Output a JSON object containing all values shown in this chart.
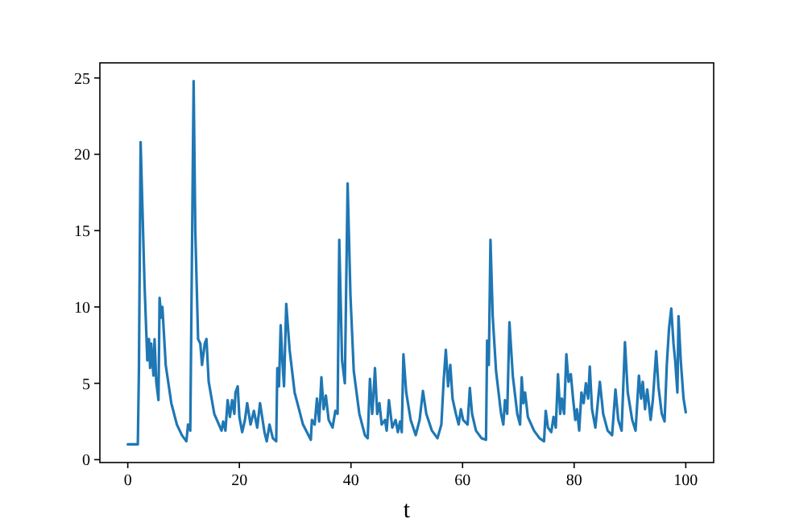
{
  "chart_data": {
    "type": "line",
    "xlabel": "t",
    "xlim": [
      -5,
      105
    ],
    "ylim": [
      -0.19,
      25.99
    ],
    "xticks": [
      0,
      20,
      40,
      60,
      80,
      100
    ],
    "yticks": [
      0,
      5,
      10,
      15,
      20,
      25
    ],
    "grid": false,
    "line_style": "solid",
    "series": [
      {
        "color": "#1f77b4",
        "x": [
          0,
          1.8,
          2.0,
          2.3,
          3.0,
          3.5,
          3.8,
          4.0,
          4.2,
          4.6,
          4.8,
          5.1,
          5.5,
          5.7,
          6.0,
          6.2,
          6.8,
          7.8,
          8.8,
          9.7,
          10.5,
          10.8,
          11.2,
          11.8,
          12.1,
          12.6,
          13.0,
          13.3,
          13.8,
          14.1,
          14.5,
          15.5,
          16.8,
          17.1,
          17.5,
          17.9,
          18.3,
          18.7,
          19.1,
          19.3,
          19.7,
          20.0,
          20.5,
          21.0,
          21.4,
          22.0,
          22.6,
          23.2,
          23.7,
          24.5,
          24.9,
          25.4,
          26.0,
          26.6,
          26.8,
          27.1,
          27.4,
          27.7,
          28.0,
          28.4,
          29.0,
          29.9,
          31.4,
          32.8,
          33.0,
          33.5,
          33.9,
          34.3,
          34.7,
          35.1,
          35.5,
          36.0,
          36.7,
          37.2,
          37.6,
          37.9,
          38.4,
          38.9,
          39.4,
          39.9,
          40.5,
          41.5,
          42.5,
          43.0,
          43.4,
          43.8,
          44.0,
          44.3,
          44.7,
          45.1,
          45.5,
          46.1,
          46.4,
          46.8,
          47.4,
          48.0,
          48.4,
          48.8,
          49.1,
          49.4,
          49.9,
          50.7,
          51.6,
          52.3,
          52.9,
          53.5,
          54.5,
          55.5,
          56.2,
          56.6,
          57.0,
          57.4,
          57.8,
          58.2,
          58.8,
          59.3,
          59.7,
          60.1,
          60.9,
          61.3,
          61.7,
          62.4,
          63.4,
          64.2,
          64.4,
          64.7,
          65.0,
          65.4,
          66.0,
          66.9,
          67.3,
          67.6,
          68.0,
          68.4,
          69.0,
          69.8,
          70.3,
          70.6,
          70.9,
          71.2,
          71.7,
          72.8,
          73.8,
          74.6,
          74.9,
          75.3,
          75.9,
          76.3,
          76.7,
          77.1,
          77.5,
          77.8,
          78.2,
          78.6,
          79.0,
          79.4,
          79.8,
          80.2,
          80.5,
          80.9,
          81.3,
          81.7,
          82.1,
          82.5,
          82.8,
          83.2,
          83.8,
          84.6,
          85.2,
          86.0,
          86.8,
          87.4,
          87.9,
          88.5,
          89.1,
          89.6,
          90.4,
          91.0,
          91.6,
          92.0,
          92.3,
          92.7,
          93.1,
          93.7,
          94.1,
          94.7,
          95.1,
          95.7,
          96.2,
          96.6,
          97.0,
          97.4,
          97.8,
          98.1,
          98.5,
          98.7,
          99.1,
          99.6,
          100
        ],
        "values": [
          1,
          1,
          6,
          20.8,
          11.5,
          6.5,
          7.9,
          6,
          7.6,
          5.5,
          7.9,
          5.1,
          3.9,
          10.6,
          9.3,
          10,
          6.2,
          3.7,
          2.3,
          1.6,
          1.2,
          2.3,
          1.9,
          24.8,
          15,
          7.9,
          7.6,
          6.2,
          7.6,
          7.9,
          5.1,
          3,
          1.9,
          2.5,
          1.9,
          3.9,
          2.8,
          3.9,
          3,
          4.4,
          4.8,
          2.8,
          1.8,
          2.6,
          3.7,
          2.3,
          3.2,
          2.1,
          3.7,
          1.8,
          1.2,
          2.3,
          1.4,
          1.2,
          6,
          4.8,
          8.8,
          6.5,
          4.8,
          10.2,
          7.2,
          4.4,
          2.3,
          1.3,
          2.6,
          2.3,
          4.0,
          2.5,
          5.4,
          3.3,
          4.2,
          2.6,
          2.1,
          3.2,
          3.0,
          14.4,
          6.5,
          5.0,
          18.1,
          10.8,
          5.8,
          3.0,
          1.6,
          1.4,
          5.3,
          3.0,
          4.0,
          6.0,
          3.0,
          3.7,
          2.3,
          2.6,
          1.9,
          3.9,
          2.1,
          2.6,
          1.8,
          2.5,
          1.8,
          6.9,
          4.4,
          2.6,
          1.6,
          2.6,
          4.5,
          3.0,
          1.9,
          1.4,
          2.3,
          5.1,
          7.2,
          4.8,
          6.2,
          4.0,
          3.0,
          2.3,
          3.3,
          2.6,
          2.3,
          4.7,
          3.0,
          1.9,
          1.4,
          1.3,
          7.8,
          6.2,
          14.4,
          9.4,
          5.8,
          3.0,
          2.3,
          3.9,
          3.0,
          9.0,
          5.5,
          3.0,
          2.3,
          5.4,
          3.7,
          4.4,
          2.8,
          1.9,
          1.4,
          1.2,
          3.2,
          2.1,
          1.8,
          2.8,
          2.1,
          5.6,
          3.0,
          4.0,
          3.0,
          6.9,
          5.1,
          5.6,
          4.0,
          2.6,
          3.3,
          1.9,
          4.4,
          3.7,
          5.0,
          4.0,
          6.1,
          3.3,
          2.1,
          5.1,
          3.0,
          1.9,
          1.6,
          4.6,
          2.6,
          1.9,
          7.7,
          4.4,
          2.6,
          1.9,
          5.5,
          4.0,
          5.1,
          3.3,
          4.6,
          2.6,
          3.9,
          7.1,
          4.8,
          3.0,
          2.5,
          6.2,
          8.6,
          9.9,
          7.6,
          6.5,
          4.4,
          9.4,
          6.5,
          4.0,
          3.1
        ]
      }
    ]
  }
}
